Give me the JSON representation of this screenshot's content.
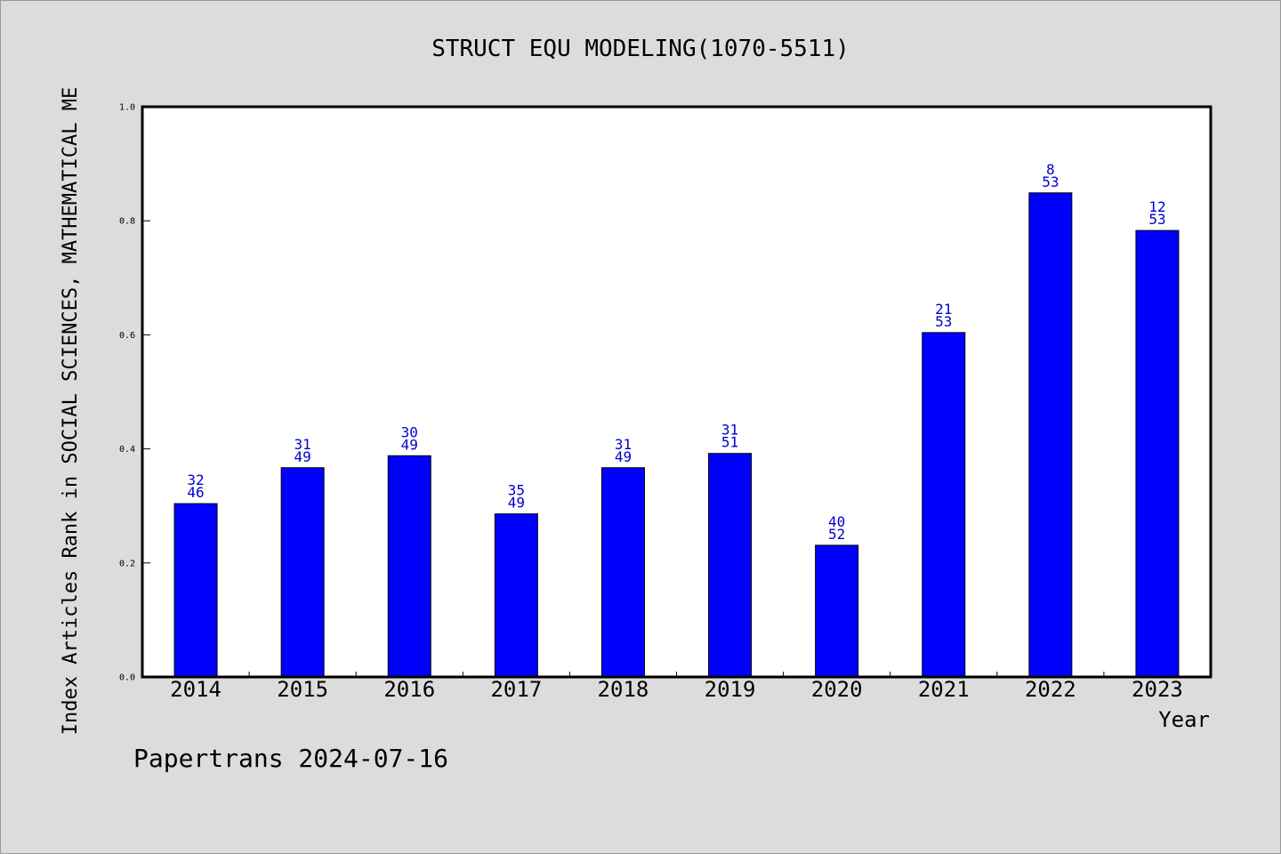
{
  "chart_data": {
    "type": "bar",
    "title": "STRUCT EQU MODELING(1070-5511)",
    "xlabel": "Year",
    "ylabel": "Index Articles Rank in SOCIAL SCIENCES, MATHEMATICAL ME",
    "ylim": [
      0,
      1.0
    ],
    "yticks": [
      "0.0",
      "0.2",
      "0.4",
      "0.6",
      "0.8",
      "1.0"
    ],
    "categories": [
      "2014",
      "2015",
      "2016",
      "2017",
      "2018",
      "2019",
      "2020",
      "2021",
      "2022",
      "2023"
    ],
    "values": [
      0.304,
      0.367,
      0.388,
      0.286,
      0.367,
      0.392,
      0.231,
      0.604,
      0.849,
      0.783
    ],
    "labels_top": [
      "32",
      "31",
      "30",
      "35",
      "31",
      "31",
      "40",
      "21",
      "8",
      "12"
    ],
    "labels_bottom": [
      "46",
      "49",
      "49",
      "49",
      "49",
      "51",
      "52",
      "53",
      "53",
      "53"
    ],
    "bar_color": "#0000ff",
    "label_color": "#0000cc",
    "grid": false
  },
  "footer": "Papertrans 2024-07-16"
}
